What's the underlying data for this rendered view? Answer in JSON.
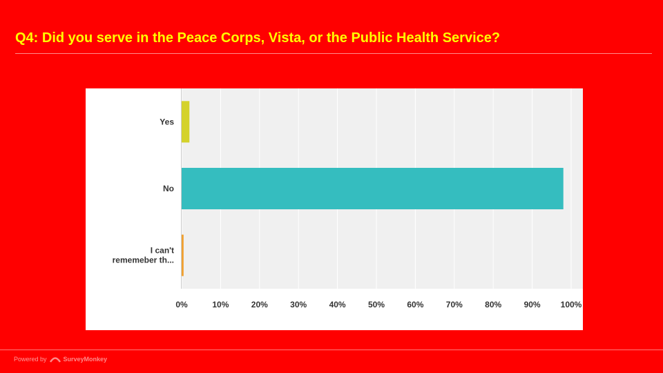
{
  "slide": {
    "title": "Q4: Did you serve in the Peace Corps, Vista, or the Public Health Service?"
  },
  "footer": {
    "powered_by": "Powered by",
    "brand": "SurveyMonkey"
  },
  "colors": {
    "background": "#ff0000",
    "title": "#ffff00",
    "plot_area": "#f0f0f0",
    "grid": "#ffffff"
  },
  "chart_data": {
    "type": "bar",
    "orientation": "horizontal",
    "categories": [
      "Yes",
      "No",
      "I can't rememeber th..."
    ],
    "category_lines": [
      [
        "Yes"
      ],
      [
        "No"
      ],
      [
        "I can't",
        "rememeber th..."
      ]
    ],
    "values": [
      2,
      98,
      0.5
    ],
    "colors": [
      "#d4d22b",
      "#35bdbf",
      "#f0a030"
    ],
    "xlim": [
      0,
      100
    ],
    "xticks": [
      "0%",
      "10%",
      "20%",
      "30%",
      "40%",
      "50%",
      "60%",
      "70%",
      "80%",
      "90%",
      "100%"
    ],
    "grid": true,
    "title": "",
    "xlabel": "",
    "ylabel": ""
  }
}
